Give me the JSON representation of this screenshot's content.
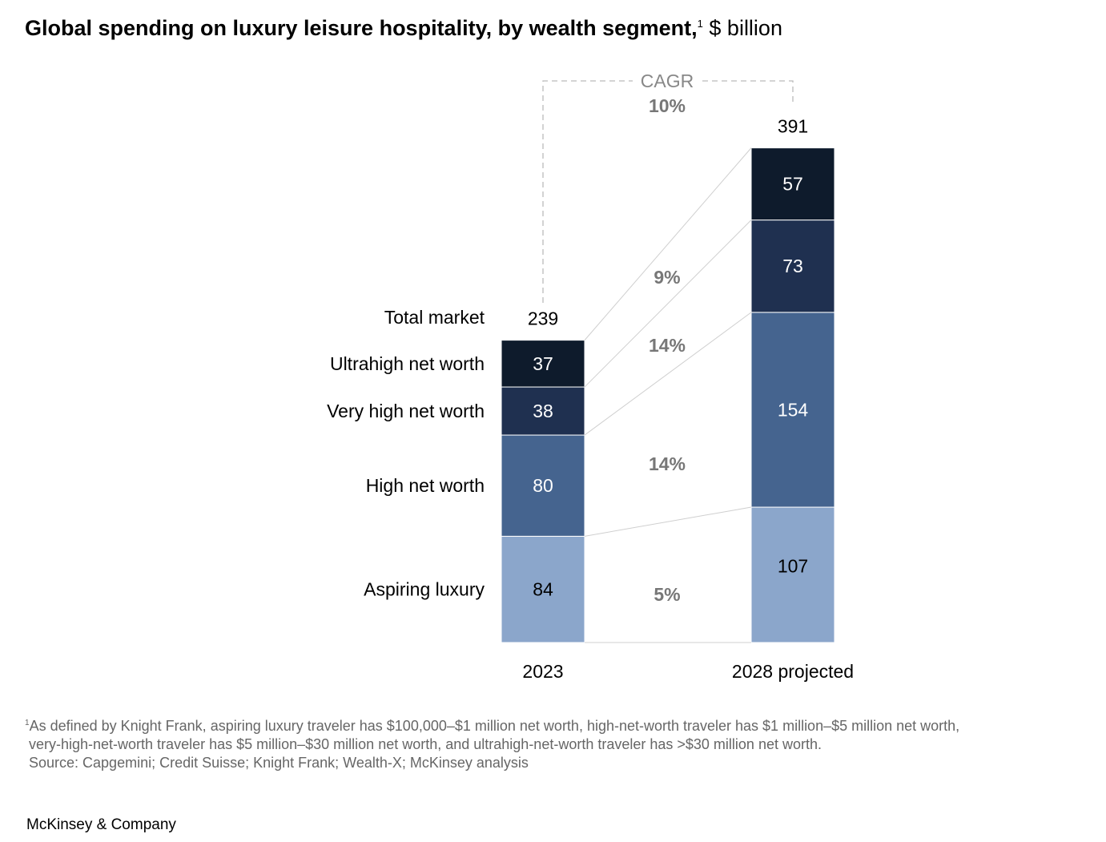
{
  "title": {
    "main": "Global spending on luxury leisure hospitality, by wealth segment,",
    "footnote_mark": "1",
    "unit": "$ billion"
  },
  "chart_data": {
    "type": "bar",
    "stacked": true,
    "categories": [
      "2023",
      "2028 projected"
    ],
    "total_label": "Total market",
    "totals": [
      239,
      391
    ],
    "series": [
      {
        "name": "Aspiring luxury",
        "values": [
          84,
          107
        ],
        "color": "#8ba6cb",
        "cagr": "5%",
        "text_color": "#000000"
      },
      {
        "name": "High net worth",
        "values": [
          80,
          154
        ],
        "color": "#45648f",
        "cagr": "14%",
        "text_color": "#ffffff"
      },
      {
        "name": "Very high net worth",
        "values": [
          38,
          73
        ],
        "color": "#1f3050",
        "cagr": "14%",
        "text_color": "#ffffff"
      },
      {
        "name": "Ultrahigh net worth",
        "values": [
          37,
          57
        ],
        "color": "#0e1b2c",
        "cagr": "9%",
        "text_color": "#ffffff"
      }
    ],
    "cagr_label": "CAGR",
    "cagr_total": "10%"
  },
  "footnotes": [
    "As defined by Knight Frank, aspiring luxury traveler has $100,000–$1 million net worth, high-net-worth traveler has $1 million–$5 million net worth,",
    "very-high-net-worth traveler has $5 million–$30 million net worth, and ultrahigh-net-worth traveler has >$30 million net worth.",
    "Source: Capgemini; Credit Suisse; Knight Frank; Wealth-X; McKinsey analysis"
  ],
  "brand": "McKinsey & Company"
}
